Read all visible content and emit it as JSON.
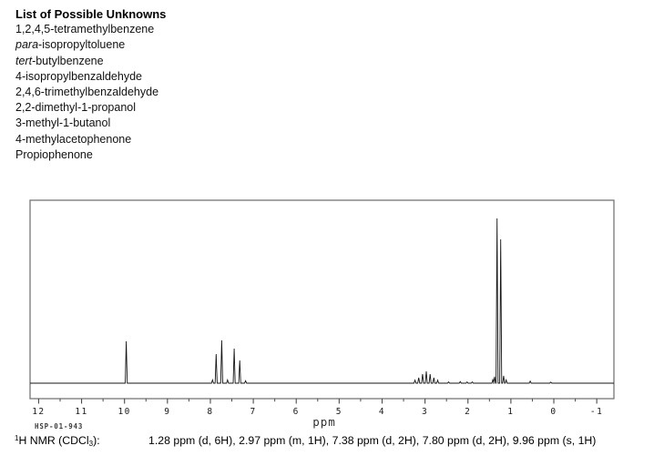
{
  "unknowns_list": {
    "title": "List of Possible Unknowns",
    "items": [
      {
        "prefix": "",
        "name": "1,2,4,5-tetramethylbenzene"
      },
      {
        "prefix": "para",
        "name": "-isopropyltoluene"
      },
      {
        "prefix": "tert",
        "name": "-butylbenzene"
      },
      {
        "prefix": "",
        "name": "4-isopropylbenzaldehyde"
      },
      {
        "prefix": "",
        "name": "2,4,6-trimethylbenzaldehyde"
      },
      {
        "prefix": "",
        "name": "2,2-dimethyl-1-propanol"
      },
      {
        "prefix": "",
        "name": "3-methyl-1-butanol"
      },
      {
        "prefix": "",
        "name": "4-methylacetophenone"
      },
      {
        "prefix": "",
        "name": "Propiophenone"
      }
    ]
  },
  "chart_data": {
    "type": "line",
    "xlabel": "ppm",
    "sample_id": "HSP-01-943",
    "xlim": [
      12.2,
      -1.4
    ],
    "x_ticks": [
      12,
      11,
      10,
      9,
      8,
      7,
      6,
      5,
      4,
      3,
      2,
      1,
      0,
      -1
    ],
    "minor_tick_step": 0.5,
    "grid": false,
    "legend": false,
    "intensity_note": "line heights normalized, 1.0 = tallest line (1.28 ppm doublet)",
    "peaks": [
      {
        "shift_ppm": 9.96,
        "multiplicity": "s",
        "integration": "1H",
        "lines": [
          {
            "ppm": 9.96,
            "h": 0.254
          }
        ]
      },
      {
        "shift_ppm": 7.8,
        "multiplicity": "d",
        "integration": "2H",
        "lines": [
          {
            "ppm": 7.865,
            "h": 0.177
          },
          {
            "ppm": 7.735,
            "h": 0.26
          }
        ]
      },
      {
        "shift_ppm": 7.38,
        "multiplicity": "d",
        "integration": "2H",
        "lines": [
          {
            "ppm": 7.445,
            "h": 0.21
          },
          {
            "ppm": 7.315,
            "h": 0.138
          }
        ]
      },
      {
        "shift_ppm": 2.97,
        "multiplicity": "m",
        "integration": "1H",
        "lines": [
          {
            "ppm": 3.234,
            "h": 0.018
          },
          {
            "ppm": 3.146,
            "h": 0.033
          },
          {
            "ppm": 3.058,
            "h": 0.055
          },
          {
            "ppm": 2.97,
            "h": 0.072
          },
          {
            "ppm": 2.882,
            "h": 0.055
          },
          {
            "ppm": 2.794,
            "h": 0.033
          },
          {
            "ppm": 2.706,
            "h": 0.018
          }
        ]
      },
      {
        "shift_ppm": 1.28,
        "multiplicity": "d",
        "integration": "6H",
        "lines": [
          {
            "ppm": 1.3225,
            "h": 1.0
          },
          {
            "ppm": 1.2375,
            "h": 0.873
          }
        ]
      }
    ],
    "minor_features": [
      {
        "ppm": 7.95,
        "h": 0.02
      },
      {
        "ppm": 7.6,
        "h": 0.02
      },
      {
        "ppm": 7.18,
        "h": 0.015
      },
      {
        "ppm": 2.45,
        "h": 0.008
      },
      {
        "ppm": 2.18,
        "h": 0.01
      },
      {
        "ppm": 2.02,
        "h": 0.008
      },
      {
        "ppm": 1.9,
        "h": 0.008
      },
      {
        "ppm": 1.42,
        "h": 0.022
      },
      {
        "ppm": 1.38,
        "h": 0.04
      },
      {
        "ppm": 1.17,
        "h": 0.045
      },
      {
        "ppm": 1.11,
        "h": 0.02
      },
      {
        "ppm": 0.55,
        "h": 0.012
      },
      {
        "ppm": 0.07,
        "h": 0.006
      }
    ]
  },
  "caption": {
    "sup": "1",
    "label_main": "H NMR (CDCl",
    "sub": "3",
    "label_end": "):",
    "shifts": "1.28 ppm (d, 6H), 2.97 ppm (m, 1H), 7.38 ppm (d, 2H), 7.80 ppm (d, 2H), 9.96 ppm (s, 1H)"
  }
}
